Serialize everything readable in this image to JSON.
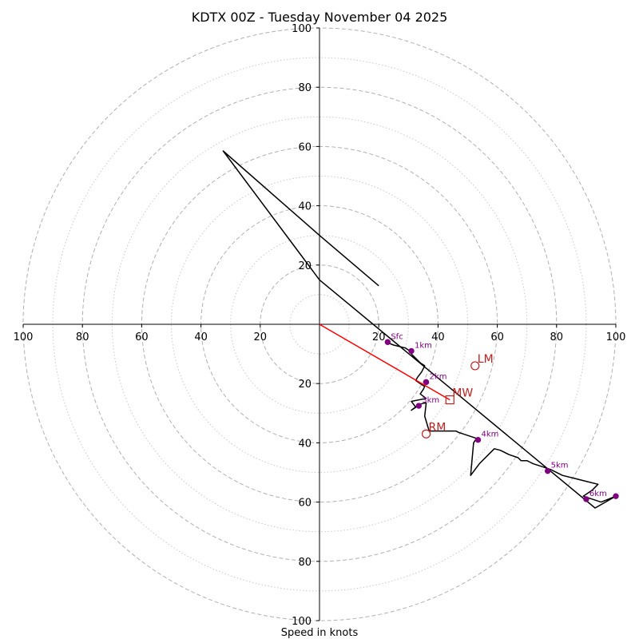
{
  "chart_data": {
    "type": "hodograph",
    "title": "KDTX 00Z - Tuesday November 04 2025",
    "xlabel": "Speed in knots",
    "max_speed": 100,
    "ring_major_step": 20,
    "ring_minor_step": 10,
    "tick_labels": {
      "left": [
        "100",
        "80",
        "60",
        "40",
        "20"
      ],
      "right": [
        "20",
        "40",
        "60",
        "80",
        "100"
      ],
      "up": [
        "20",
        "40",
        "60",
        "80",
        "100"
      ],
      "down": [
        "20",
        "40",
        "60",
        "80",
        "100"
      ]
    },
    "trace": {
      "u": [
        22.5,
        25,
        29,
        30.5,
        31,
        32,
        33,
        34,
        35.5,
        34.5,
        33,
        32.5,
        34,
        35.5,
        35,
        34,
        36,
        31,
        32.5,
        31,
        33,
        33.5,
        36,
        35.5,
        37,
        46,
        47,
        53,
        52,
        51,
        54,
        57,
        59,
        61,
        64,
        67,
        68,
        70,
        71,
        72,
        75,
        78,
        82,
        86,
        90,
        94,
        92,
        89,
        95,
        100,
        93,
        0,
        -32.5,
        0,
        20
      ],
      "v": [
        -6,
        -7,
        -8,
        -9,
        -10,
        -11,
        -12,
        -13,
        -14,
        -16,
        -18,
        -19,
        -20,
        -21,
        -22,
        -23.5,
        -25,
        -26,
        -28,
        -29,
        -27.5,
        -27,
        -26.5,
        -31,
        -36,
        -36,
        -36.5,
        -38.5,
        -40,
        -51,
        -47,
        -44,
        -42,
        -42.5,
        -44,
        -45,
        -46,
        -46,
        -46.5,
        -47,
        -48,
        -49,
        -51,
        -52,
        -53,
        -54,
        -56,
        -58,
        -60,
        -58,
        -62,
        15,
        58.5,
        30,
        13
      ]
    },
    "height_markers": [
      {
        "label": "Sfc",
        "u": 23,
        "v": -6
      },
      {
        "label": "1km",
        "u": 31,
        "v": -9
      },
      {
        "label": "2km",
        "u": 36,
        "v": -19.5
      },
      {
        "label": "3km",
        "u": 33.5,
        "v": -27.5
      },
      {
        "label": "4km",
        "u": 53.5,
        "v": -39
      },
      {
        "label": "5km",
        "u": 77,
        "v": -49.5
      },
      {
        "label": "6km",
        "u": 90,
        "v": -59
      },
      {
        "label": "",
        "u": 100,
        "v": -58
      }
    ],
    "storm_motion": [
      {
        "label": "LM",
        "u": 52.5,
        "v": -14,
        "marker": "circle"
      },
      {
        "label": "MW",
        "u": 44,
        "v": -25.5,
        "marker": "square"
      },
      {
        "label": "RM",
        "u": 36,
        "v": -37,
        "marker": "circle"
      }
    ],
    "shear_vector": {
      "u0": 0,
      "v0": 0,
      "u1": 44,
      "v1": -25.5
    },
    "colors": {
      "trace": "#000000",
      "marker": "#800080",
      "storm": "#c02020",
      "shear": "#ff0000",
      "ring_major": "#b0b0b0",
      "ring_minor": "#c8c8c8",
      "axis": "#000000"
    }
  }
}
